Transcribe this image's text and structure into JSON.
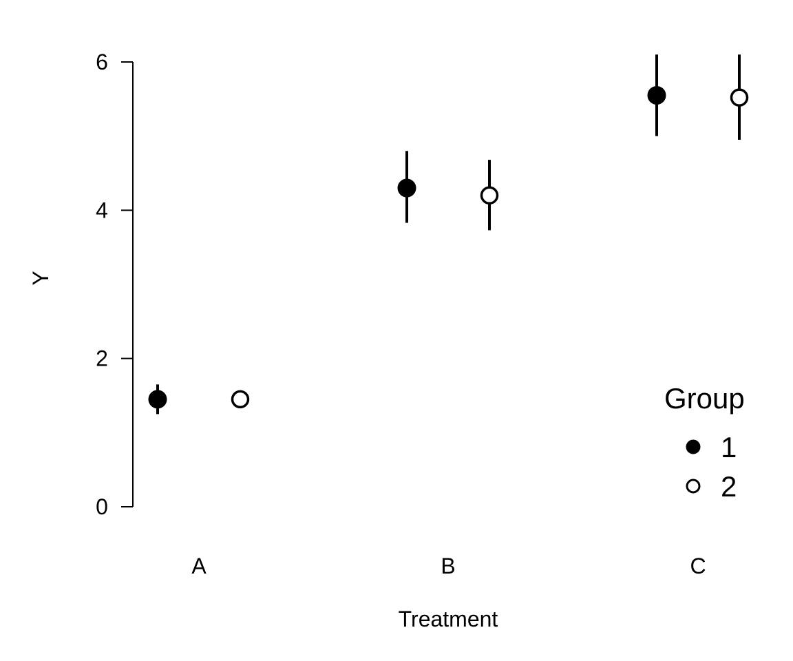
{
  "chart_data": {
    "type": "scatter",
    "xlabel": "Treatment",
    "ylabel": "Y",
    "ylim": [
      0,
      6
    ],
    "yticks": [
      "0",
      "2",
      "4",
      "6"
    ],
    "categories": [
      "A",
      "B",
      "C"
    ],
    "grid": false,
    "legend": {
      "title": "Group",
      "placement": "bottom-right",
      "entries": [
        "1",
        "2"
      ]
    },
    "series": [
      {
        "name": "1",
        "marker": "filled-circle",
        "color": "#000000",
        "values": [
          1.45,
          4.3,
          5.55
        ],
        "lower": [
          1.25,
          3.83,
          5.0
        ],
        "upper": [
          1.65,
          4.8,
          6.1
        ]
      },
      {
        "name": "2",
        "marker": "open-circle",
        "color": "#000000",
        "values": [
          1.45,
          4.2,
          5.52
        ],
        "lower": [
          1.45,
          3.73,
          4.95
        ],
        "upper": [
          1.45,
          4.68,
          6.1
        ]
      }
    ]
  }
}
